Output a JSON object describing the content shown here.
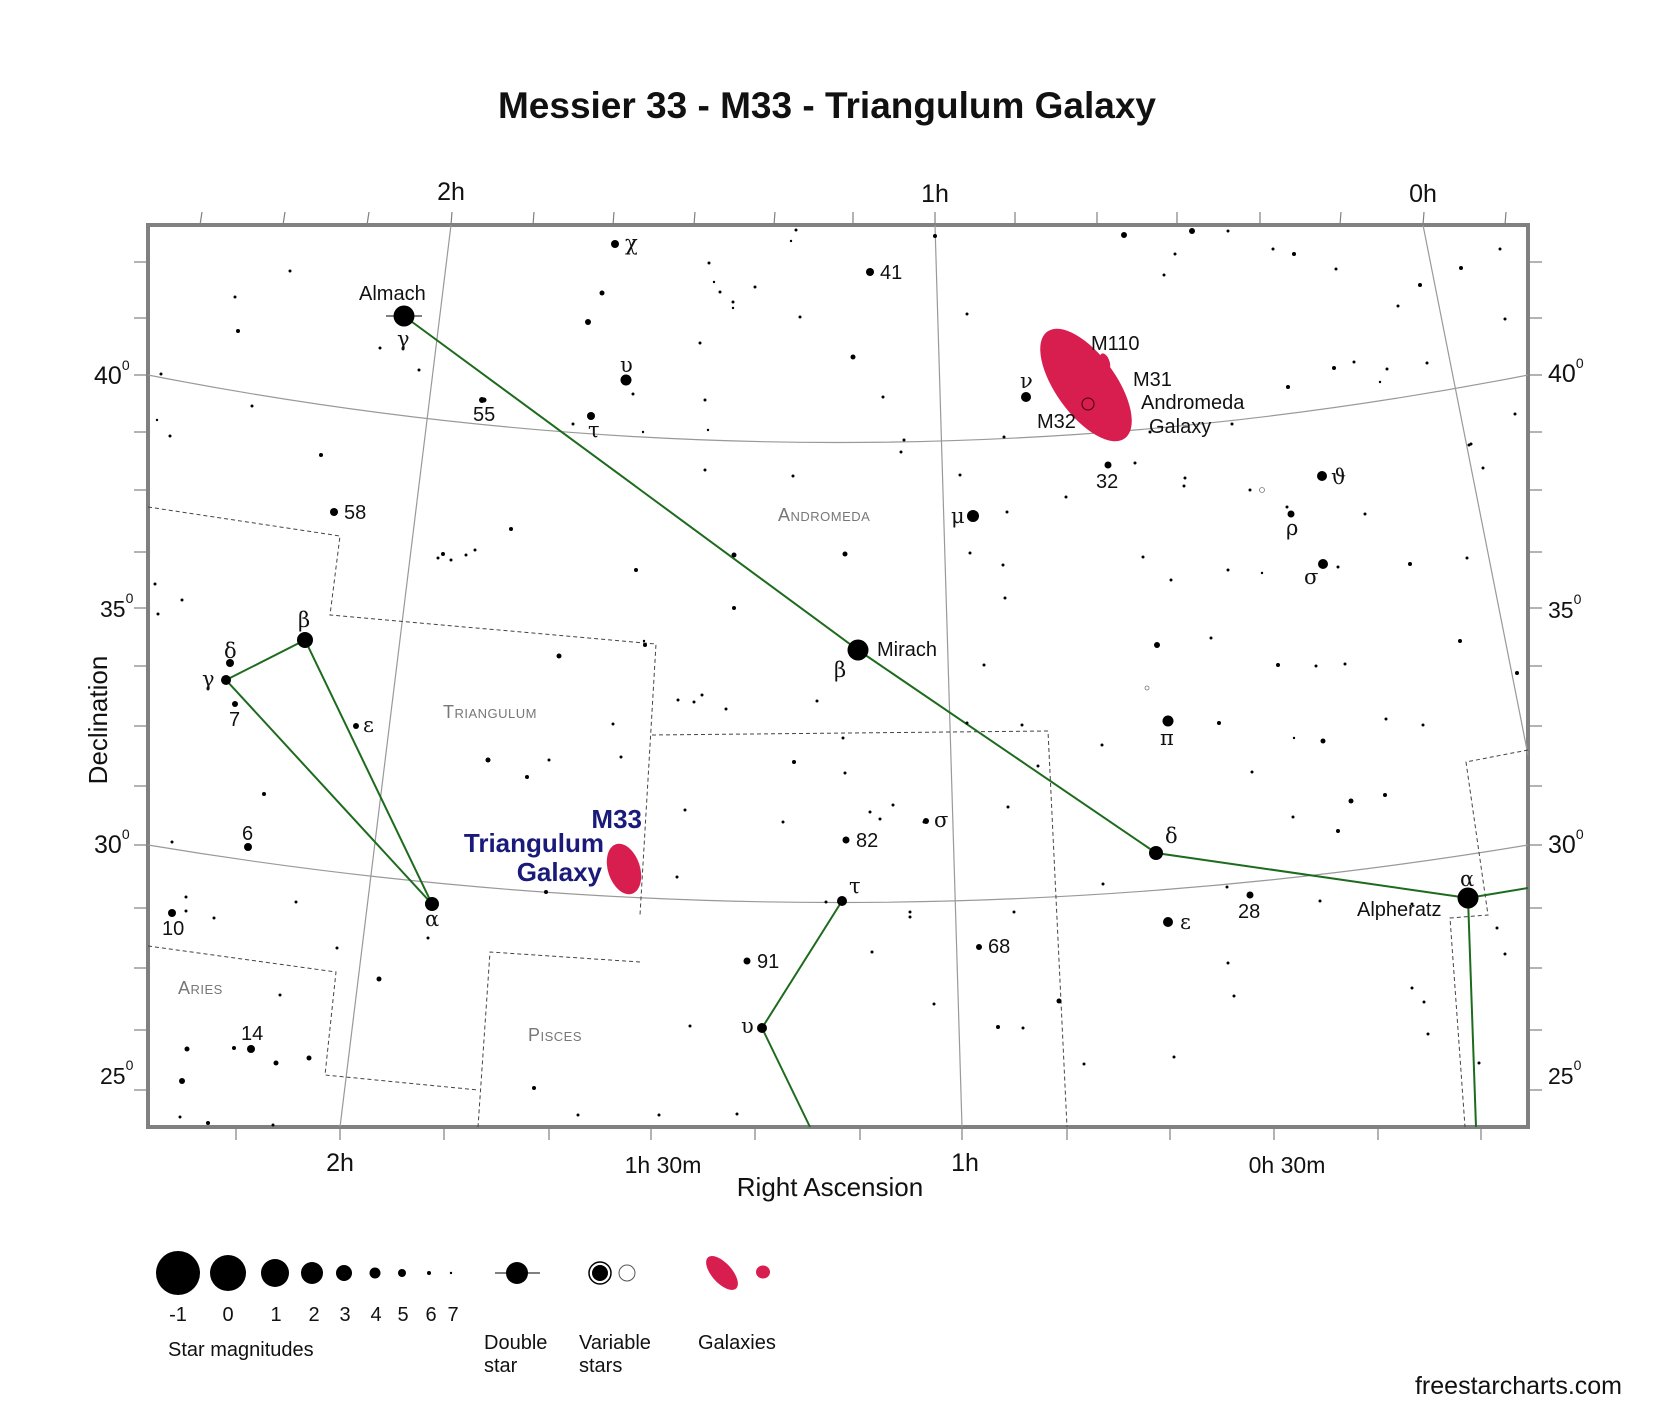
{
  "title": "Messier 33 - M33 - Triangulum Galaxy",
  "axes": {
    "ra_title": "Right Ascension",
    "dec_title": "Declination",
    "ra_top": [
      "2h",
      "1h",
      "0h"
    ],
    "ra_bottom": [
      "2h",
      "1h 30m",
      "1h",
      "0h 30m"
    ],
    "dec_left": [
      {
        "deg": "40",
        "sup": "0"
      },
      {
        "deg": "35",
        "sup": "0"
      },
      {
        "deg": "30",
        "sup": "0"
      },
      {
        "deg": "25",
        "sup": "0"
      }
    ],
    "dec_right": [
      {
        "deg": "40",
        "sup": "0"
      },
      {
        "deg": "35",
        "sup": "0"
      },
      {
        "deg": "30",
        "sup": "0"
      },
      {
        "deg": "25",
        "sup": "0"
      }
    ]
  },
  "constellations": [
    "Andromeda",
    "Triangulum",
    "Aries",
    "Pisces"
  ],
  "named_stars": [
    "Almach",
    "Mirach",
    "Alpheratz"
  ],
  "star_labels": {
    "chi": "χ",
    "gamma_and": "γ",
    "upsilon_and": "υ",
    "tau_and": "τ",
    "s55": "55",
    "s41": "41",
    "nu_and": "ν",
    "s58": "58",
    "s32": "32",
    "theta_and": "ϑ",
    "mu_and": "μ",
    "rho_and": "ρ",
    "sigma_and": "σ",
    "beta_tri": "β",
    "delta_tri": "δ",
    "gamma_tri": "γ",
    "s7": "7",
    "epsilon_tri": "ε",
    "beta_and": "β",
    "pi_and": "π",
    "s6": "6",
    "alpha_tri": "α",
    "s10": "10",
    "s82": "82",
    "sigma_psc": "σ",
    "delta_and": "δ",
    "alpha_and": "α",
    "tau_psc": "τ",
    "s28": "28",
    "epsilon_and": "ε",
    "s91": "91",
    "s68": "68",
    "upsilon_psc": "υ",
    "s14": "14"
  },
  "objects": {
    "m110": "M110",
    "m31": "M31",
    "m31_name_1": "Andromeda",
    "m31_name_2": "Galaxy",
    "m32": "M32",
    "m33": "M33",
    "m33_name_1": "Triangulum",
    "m33_name_2": "Galaxy"
  },
  "legend": {
    "magnitudes": [
      "-1",
      "0",
      "1",
      "2",
      "3",
      "4",
      "5",
      "6",
      "7"
    ],
    "magnitudes_caption": "Star magnitudes",
    "double_star_1": "Double",
    "double_star_2": "star",
    "variable_stars_1": "Variable",
    "variable_stars_2": "stars",
    "galaxies": "Galaxies"
  },
  "credit": "freestarcharts.com",
  "colors": {
    "galaxy": "#d81e4e",
    "constellation_line": "#1d6b1d",
    "border": "#808080",
    "m33_label": "#1a1a7a",
    "grid": "#999999"
  }
}
